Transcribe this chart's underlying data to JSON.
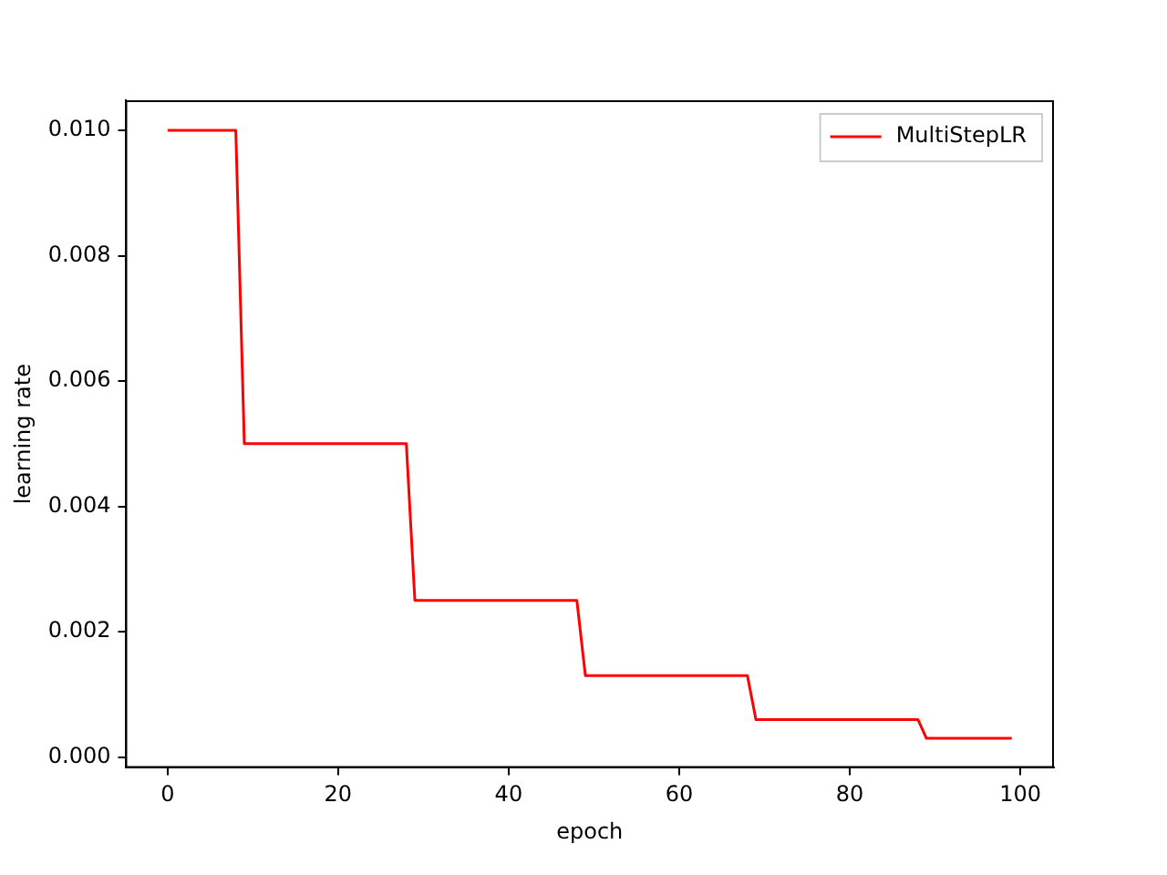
{
  "chart_data": {
    "type": "line",
    "xlabel": "epoch",
    "ylabel": "learning rate",
    "x": [
      0,
      8,
      9,
      28,
      29,
      48,
      49,
      68,
      69,
      88,
      89,
      99
    ],
    "series": [
      {
        "name": "MultiStepLR",
        "color": "#ff0000",
        "values": [
          0.01,
          0.01,
          0.005,
          0.005,
          0.0025,
          0.0025,
          0.0013,
          0.0013,
          0.0006,
          0.0006,
          0.0003,
          0.0003
        ]
      }
    ],
    "xlim": [
      -4.95,
      103.95
    ],
    "xticks": [
      0,
      20,
      40,
      60,
      80,
      100
    ],
    "ylim": [
      -0.00017,
      0.01048
    ],
    "yticks": [
      {
        "value": 0,
        "label": "0.000"
      },
      {
        "value": 0.002,
        "label": "0.002"
      },
      {
        "value": 0.004,
        "label": "0.004"
      },
      {
        "value": 0.006,
        "label": "0.006"
      },
      {
        "value": 0.008,
        "label": "0.008"
      },
      {
        "value": 0.01,
        "label": "0.010"
      }
    ],
    "grid": false,
    "legend": "top right",
    "marker": "none",
    "line_style": "solid"
  }
}
